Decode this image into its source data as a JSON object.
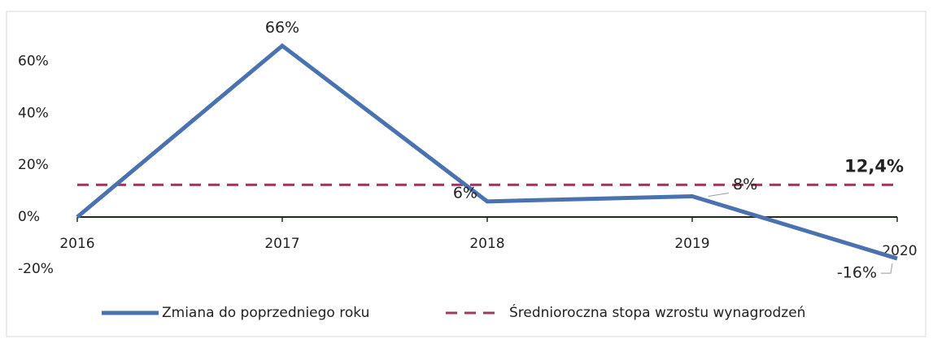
{
  "chart_data": {
    "type": "line",
    "categories": [
      "2016",
      "2017",
      "2018",
      "2019",
      "2020"
    ],
    "series": [
      {
        "name": "Zmiana do poprzedniego roku",
        "color": "#4a72b0",
        "values": [
          0,
          66,
          6,
          8,
          -16
        ],
        "value_labels": [
          null,
          "66%",
          "6%",
          "8%",
          "-16%"
        ]
      }
    ],
    "reference_line": {
      "name": "Średnioroczna stopa wzrostu wynagrodzeń",
      "color": "#9c3b5e",
      "dashed": true,
      "value": 12.4,
      "value_label": "12,4%"
    },
    "ylim": [
      -26,
      78
    ],
    "yticks": [
      {
        "value": -20,
        "label": "-20%"
      },
      {
        "value": 0,
        "label": "0%"
      },
      {
        "value": 20,
        "label": "20%"
      },
      {
        "value": 40,
        "label": "40%"
      },
      {
        "value": 60,
        "label": "60%"
      }
    ],
    "grid": false,
    "legend": "bottom"
  }
}
